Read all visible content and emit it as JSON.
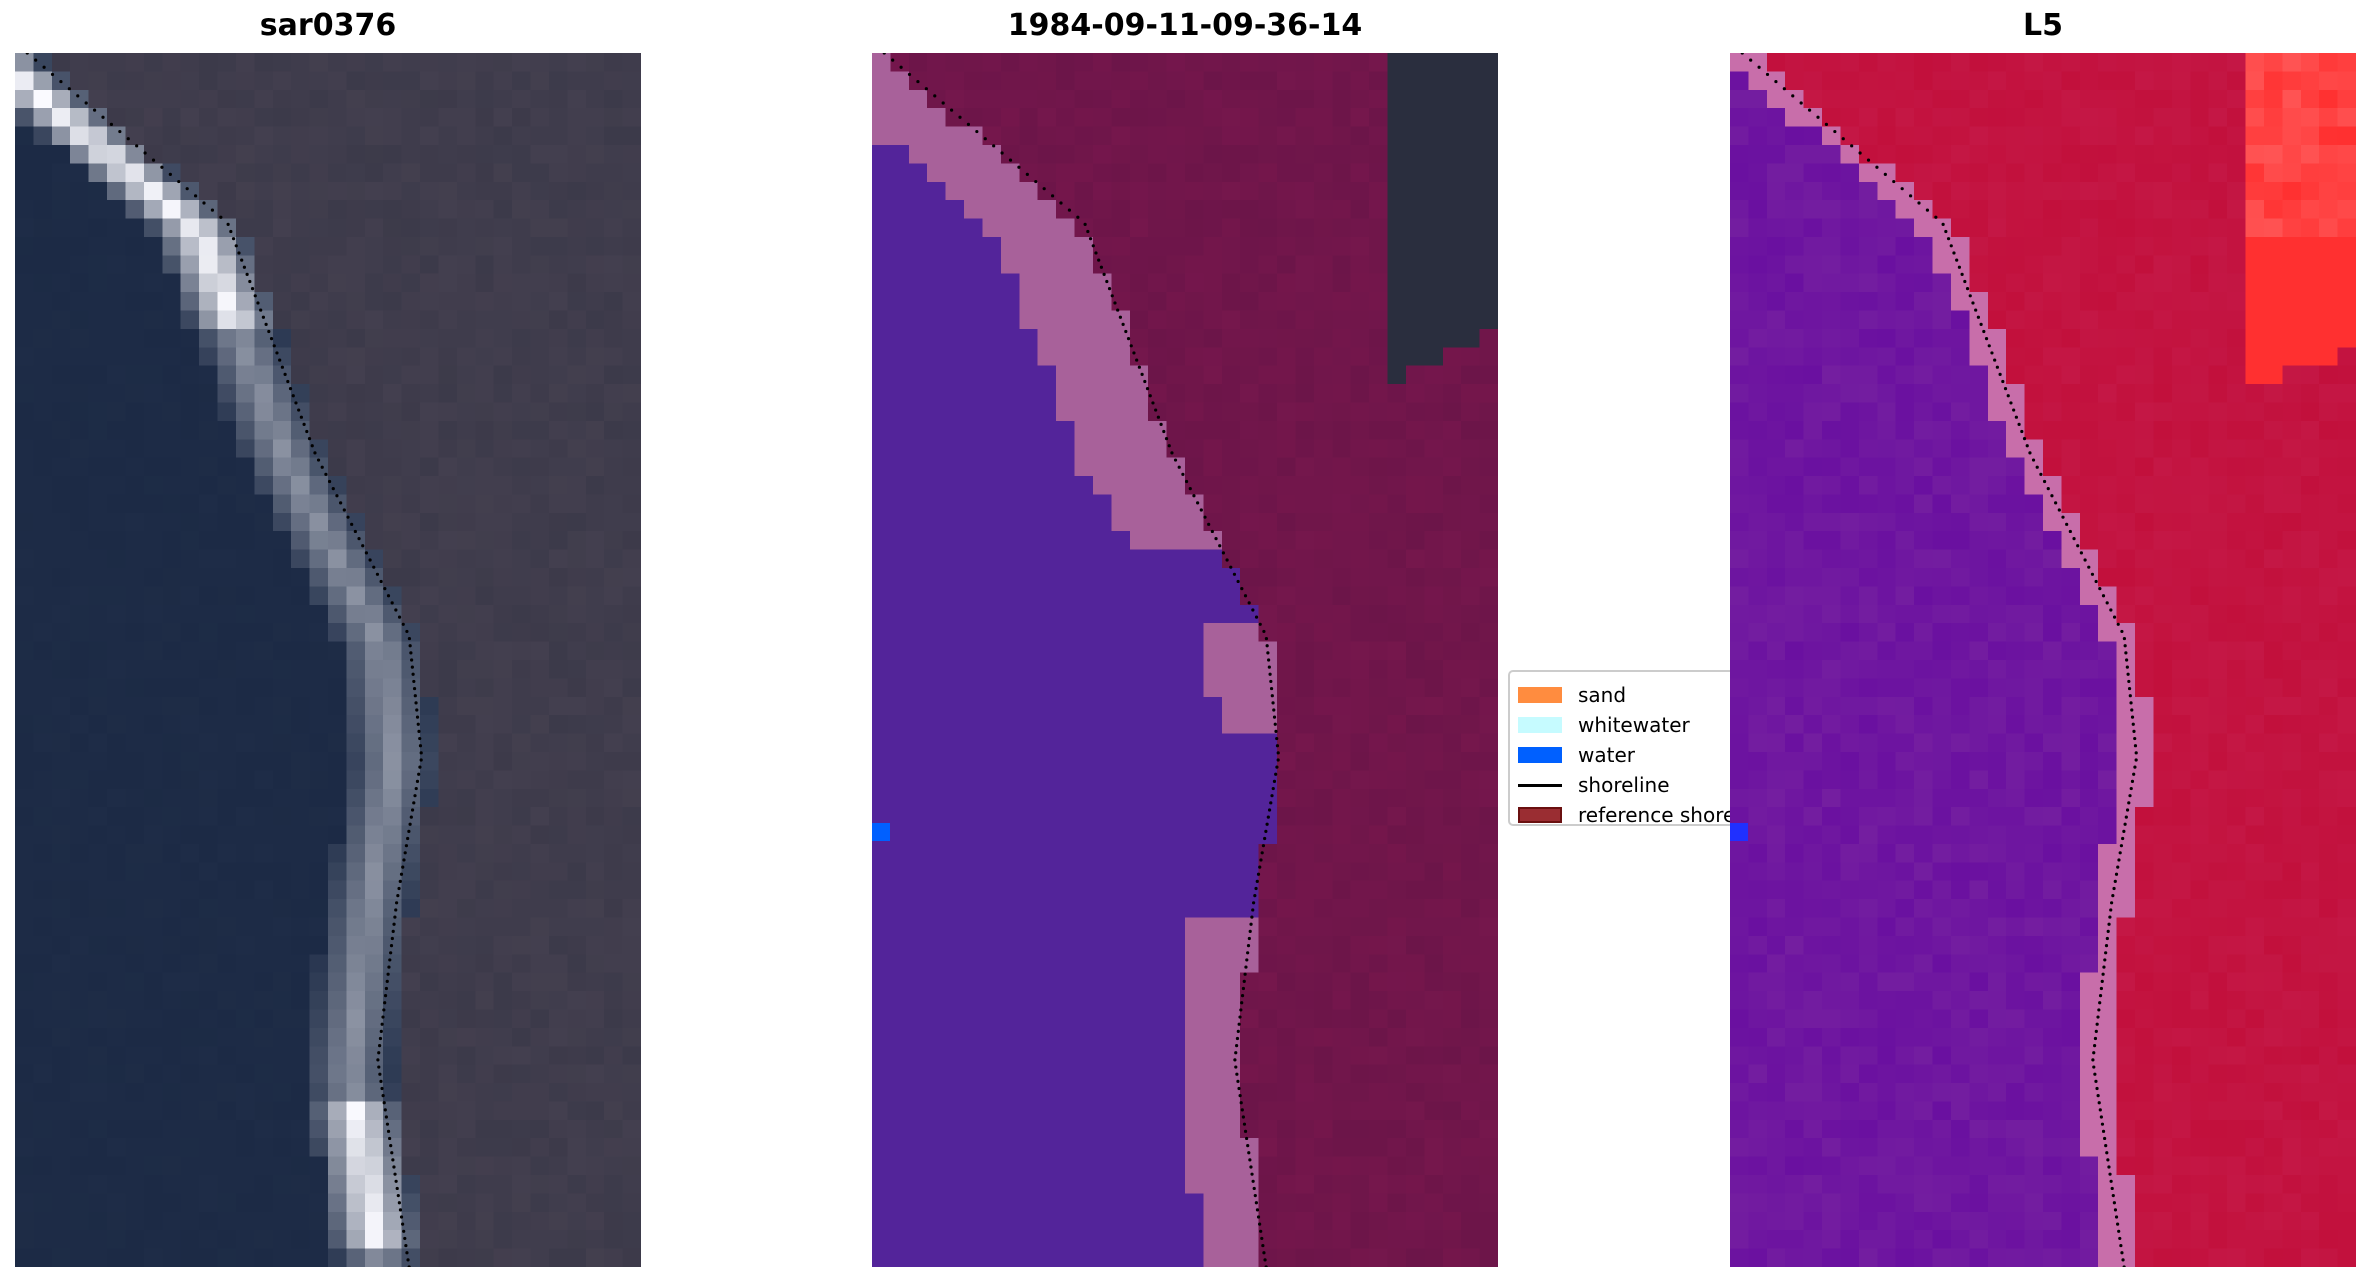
{
  "panels": [
    {
      "title": "sar0376",
      "type": "rgb-image"
    },
    {
      "title": "1984-09-11-09-36-14",
      "type": "classified-image"
    },
    {
      "title": "L5",
      "type": "mndwi-image"
    }
  ],
  "legend": {
    "items": [
      {
        "label": "sand",
        "color": "#ff8c3f",
        "kind": "patch"
      },
      {
        "label": "whitewater",
        "color": "#c6fbff",
        "kind": "patch"
      },
      {
        "label": "water",
        "color": "#0060ff",
        "kind": "patch"
      },
      {
        "label": "shoreline",
        "color": "#000000",
        "kind": "line"
      },
      {
        "label": "reference shore",
        "color": "#9a2d32",
        "kind": "patch"
      }
    ]
  },
  "colors": {
    "water_class": "#53249a",
    "sand_overlay": "#a8619a",
    "land_overlay": "#6c1549",
    "dark": "#2a2e3e",
    "ocean_rgb": "#1c2a45",
    "beach_rgb": "#c8c8d8",
    "land_rgb": "#3c3a4a",
    "mndwi_water": "#6a10a0",
    "mndwi_land": "#c2103c",
    "mndwi_hot": "#ff3030"
  }
}
